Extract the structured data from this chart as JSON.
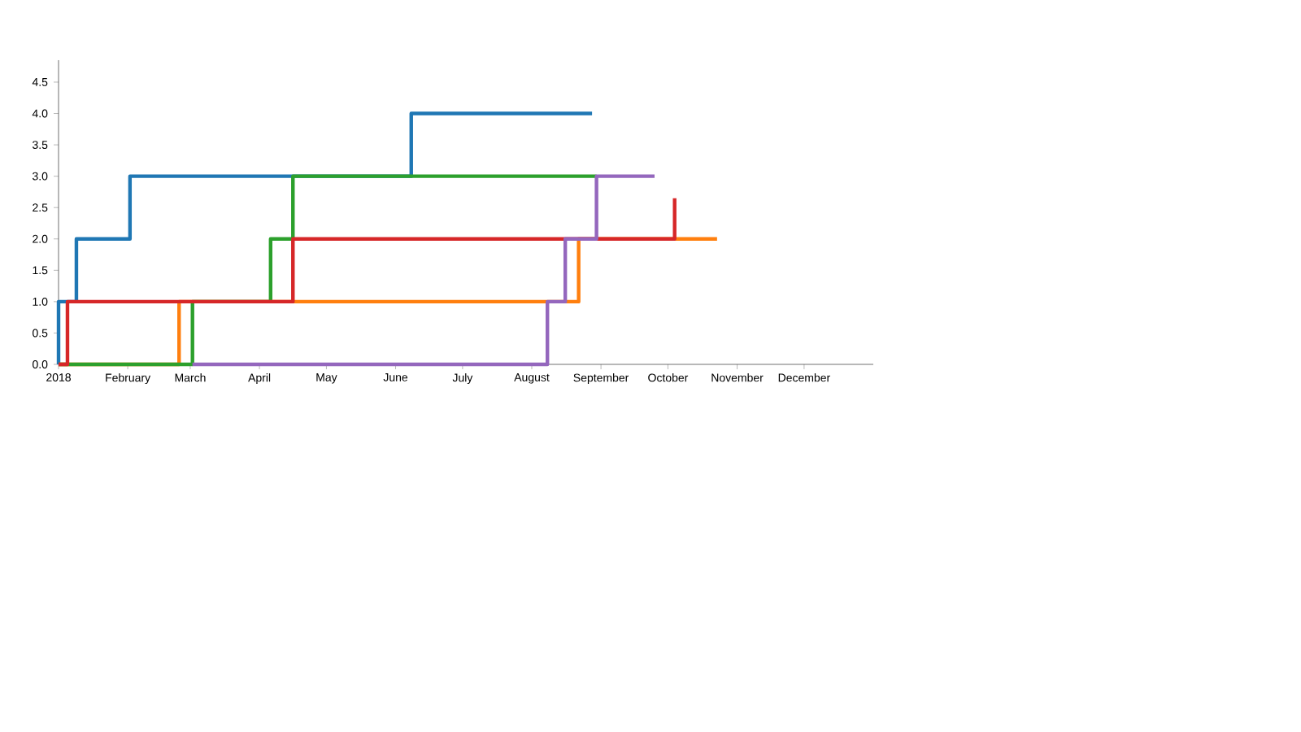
{
  "chart_data": {
    "type": "step",
    "xlim": [
      "2018-01-01",
      "2019-01-01"
    ],
    "xticks": [
      {
        "value": "2018-01-01",
        "label": "2018"
      },
      {
        "value": "2018-02-01",
        "label": "February"
      },
      {
        "value": "2018-03-01",
        "label": "March"
      },
      {
        "value": "2018-04-01",
        "label": "April"
      },
      {
        "value": "2018-05-01",
        "label": "May"
      },
      {
        "value": "2018-06-01",
        "label": "June"
      },
      {
        "value": "2018-07-01",
        "label": "July"
      },
      {
        "value": "2018-08-01",
        "label": "August"
      },
      {
        "value": "2018-09-01",
        "label": "September"
      },
      {
        "value": "2018-10-01",
        "label": "October"
      },
      {
        "value": "2018-11-01",
        "label": "November"
      },
      {
        "value": "2018-12-01",
        "label": "December"
      }
    ],
    "ylim": [
      0,
      4.85
    ],
    "yticks": [
      {
        "value": 0,
        "label": "0.0"
      },
      {
        "value": 0.5,
        "label": "0.5"
      },
      {
        "value": 1,
        "label": "1.0"
      },
      {
        "value": 1.5,
        "label": "1.5"
      },
      {
        "value": 2,
        "label": "2.0"
      },
      {
        "value": 2.5,
        "label": "2.5"
      },
      {
        "value": 3,
        "label": "3.0"
      },
      {
        "value": 3.5,
        "label": "3.5"
      },
      {
        "value": 4,
        "label": "4.0"
      },
      {
        "value": 4.5,
        "label": "4.5"
      }
    ],
    "series": [
      {
        "color": "#1f77b4",
        "x": [
          "2018-01-01",
          "2018-01-01",
          "2018-01-09",
          "2018-02-02",
          "2018-06-08",
          "2018-08-28"
        ],
        "values": [
          0,
          1,
          2,
          3,
          4,
          4
        ]
      },
      {
        "color": "#ff7f0e",
        "x": [
          "2018-01-01",
          "2018-02-24",
          "2018-08-22",
          "2018-10-23"
        ],
        "values": [
          0,
          1,
          2,
          2
        ]
      },
      {
        "color": "#2ca02c",
        "x": [
          "2018-01-01",
          "2018-03-02",
          "2018-04-06",
          "2018-04-16",
          "2018-08-30"
        ],
        "values": [
          0,
          1,
          2,
          3,
          3
        ]
      },
      {
        "color": "#d62728",
        "x": [
          "2018-01-01",
          "2018-01-05",
          "2018-04-16",
          "2018-10-04"
        ],
        "values": [
          0,
          1,
          2,
          2.65
        ]
      },
      {
        "color": "#9467bd",
        "x": [
          "2018-03-02",
          "2018-08-08",
          "2018-08-16",
          "2018-08-30",
          "2018-09-25"
        ],
        "values": [
          0,
          1,
          2,
          3,
          3
        ]
      }
    ]
  }
}
